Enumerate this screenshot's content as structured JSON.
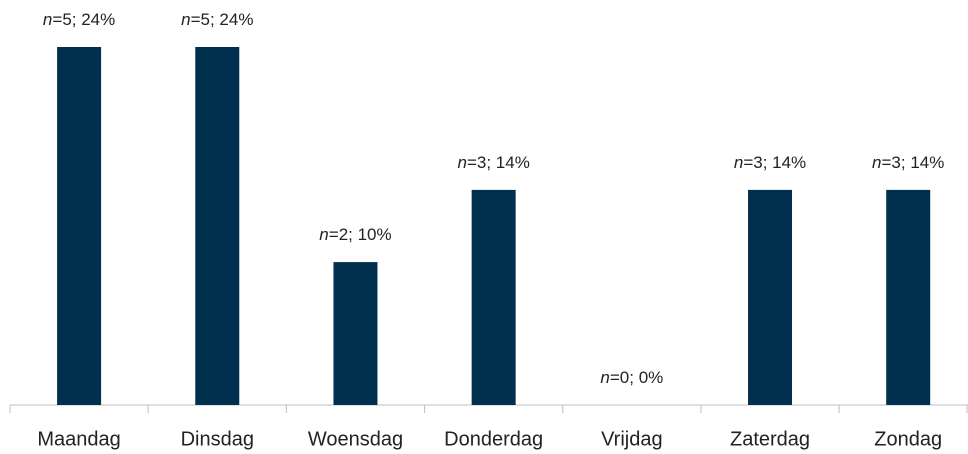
{
  "chart_data": {
    "type": "bar",
    "categories": [
      "Maandag",
      "Dinsdag",
      "Woensdag",
      "Donderdag",
      "Vrijdag",
      "Zaterdag",
      "Zondag"
    ],
    "values": [
      23.8,
      23.8,
      9.5,
      14.3,
      0,
      14.3,
      14.3
    ],
    "value_labels": [
      "n=5; 24%",
      "n=5; 24%",
      "n=2; 10%",
      "n=3; 14%",
      "n=0; 0%",
      "n=3; 14%",
      "n=3; 14%"
    ],
    "color": "#00304e"
  }
}
